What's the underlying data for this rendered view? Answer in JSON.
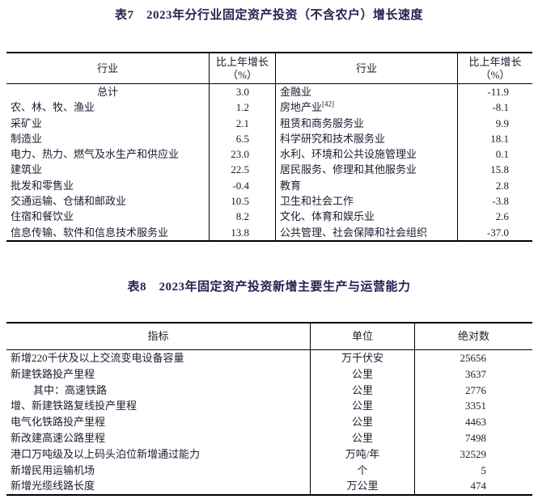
{
  "page": {
    "background": "#ffffff",
    "text_color": "#1c1c30",
    "title_color": "#232354",
    "border_color": "#000000"
  },
  "table7": {
    "title": "表7　2023年分行业固定资产投资（不含农户）增长速度",
    "header": {
      "industry": "行业",
      "growth_line1": "比上年增长",
      "growth_line2": "（%）"
    },
    "left_rows": [
      {
        "name": "总计",
        "value": "3.0",
        "center": true
      },
      {
        "name": "农、林、牧、渔业",
        "value": "1.2"
      },
      {
        "name": "采矿业",
        "value": "2.1"
      },
      {
        "name": "制造业",
        "value": "6.5"
      },
      {
        "name": "电力、热力、燃气及水生产和供应业",
        "value": "23.0"
      },
      {
        "name": "建筑业",
        "value": "22.5"
      },
      {
        "name": "批发和零售业",
        "value": "-0.4"
      },
      {
        "name": "交通运输、仓储和邮政业",
        "value": "10.5"
      },
      {
        "name": "住宿和餐饮业",
        "value": "8.2"
      },
      {
        "name": "信息传输、软件和信息技术服务业",
        "value": "13.8"
      }
    ],
    "right_rows": [
      {
        "name": "金融业",
        "value": "-11.9"
      },
      {
        "name": "房地产业",
        "sup": "[42]",
        "value": "-8.1"
      },
      {
        "name": "租赁和商务服务业",
        "value": "9.9"
      },
      {
        "name": "科学研究和技术服务业",
        "value": "18.1"
      },
      {
        "name": "水利、环境和公共设施管理业",
        "value": "0.1"
      },
      {
        "name": "居民服务、修理和其他服务业",
        "value": "15.8"
      },
      {
        "name": "教育",
        "value": "2.8"
      },
      {
        "name": "卫生和社会工作",
        "value": "-3.8"
      },
      {
        "name": "文化、体育和娱乐业",
        "value": "2.6"
      },
      {
        "name": "公共管理、社会保障和社会组织",
        "value": "-37.0"
      }
    ]
  },
  "table8": {
    "title": "表8　2023年固定资产投资新增主要生产与运营能力",
    "header": {
      "indicator": "指标",
      "unit": "单位",
      "value": "绝对数"
    },
    "rows": [
      {
        "name": "新增220千伏及以上交流变电设备容量",
        "unit": "万千伏安",
        "value": "25656"
      },
      {
        "name": "新建铁路投产里程",
        "unit": "公里",
        "value": "3637"
      },
      {
        "name": "其中：高速铁路",
        "unit": "公里",
        "value": "2776",
        "indent": true
      },
      {
        "name": "增、新建铁路复线投产里程",
        "unit": "公里",
        "value": "3351"
      },
      {
        "name": "电气化铁路投产里程",
        "unit": "公里",
        "value": "4463"
      },
      {
        "name": "新改建高速公路里程",
        "unit": "公里",
        "value": "7498"
      },
      {
        "name": "港口万吨级及以上码头泊位新增通过能力",
        "unit": "万吨/年",
        "value": "32529"
      },
      {
        "name": "新增民用运输机场",
        "unit": "个",
        "value": "5"
      },
      {
        "name": "新增光缆线路长度",
        "unit": "万公里",
        "value": "474"
      }
    ]
  }
}
